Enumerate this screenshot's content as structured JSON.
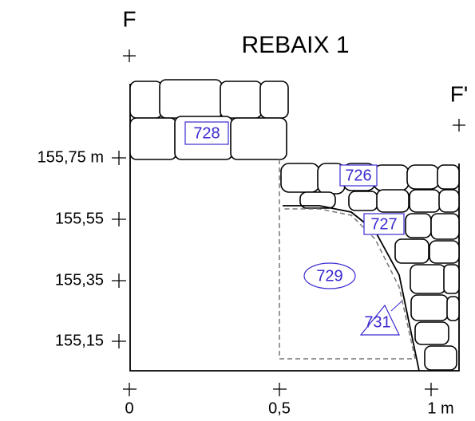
{
  "title": "REBAIX 1",
  "points": {
    "start": "F",
    "end": "F'"
  },
  "elevations": [
    "155,75 m",
    "155,55",
    "155,35",
    "155,15"
  ],
  "distances": [
    "0",
    "0,5",
    "1 m"
  ],
  "units": {
    "u728": "728",
    "u726": "726",
    "u727": "727",
    "u729": "729",
    "u731": "731"
  }
}
